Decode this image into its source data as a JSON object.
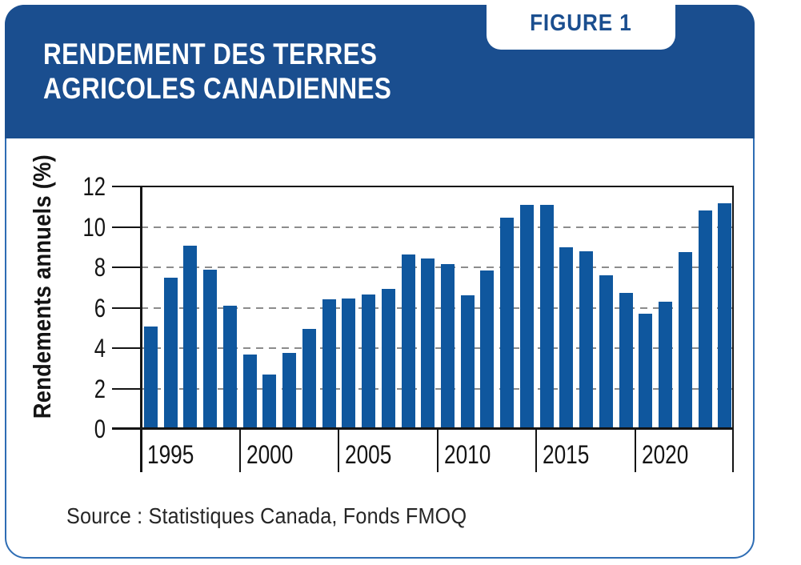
{
  "header": {
    "title_lines": [
      "RENDEMENT DES TERRES",
      "AGRICOLES CANADIENNES"
    ],
    "figure_label": "FIGURE 1"
  },
  "footer": {
    "source": "Source : Statistiques Canada, Fonds FMOQ"
  },
  "colors": {
    "header_blue": "#1a4e8f",
    "bar_blue": "#0f579e",
    "card_border_blue": "#2e6db4",
    "grid_gray": "#8c8c8c",
    "axis_black": "#141414"
  },
  "chart_data": {
    "type": "bar",
    "title": "Rendement des terres agricoles canadiennes",
    "xlabel": "",
    "ylabel": "Rendements annuels (%)",
    "ylim": [
      0,
      12
    ],
    "y_ticks": [
      0,
      2,
      4,
      6,
      8,
      10,
      12
    ],
    "gridlines": [
      2,
      4,
      6,
      8,
      10
    ],
    "grid_style": "dashed",
    "legend": "none",
    "x_tick_labels": [
      "1995",
      "2000",
      "2005",
      "2010",
      "2015",
      "2020"
    ],
    "categories": [
      1994,
      1995,
      1996,
      1997,
      1998,
      1999,
      2000,
      2001,
      2002,
      2003,
      2004,
      2005,
      2006,
      2007,
      2008,
      2009,
      2010,
      2011,
      2012,
      2013,
      2014,
      2015,
      2016,
      2017,
      2018,
      2019,
      2020,
      2021,
      2022,
      2023
    ],
    "values": [
      5.05,
      7.5,
      9.05,
      7.9,
      6.1,
      3.7,
      2.7,
      3.75,
      4.95,
      6.4,
      6.45,
      6.65,
      6.95,
      8.65,
      8.45,
      8.15,
      6.6,
      7.85,
      10.45,
      11.1,
      11.1,
      9.0,
      8.8,
      7.6,
      6.75,
      5.7,
      6.3,
      8.75,
      10.8,
      11.15
    ]
  }
}
